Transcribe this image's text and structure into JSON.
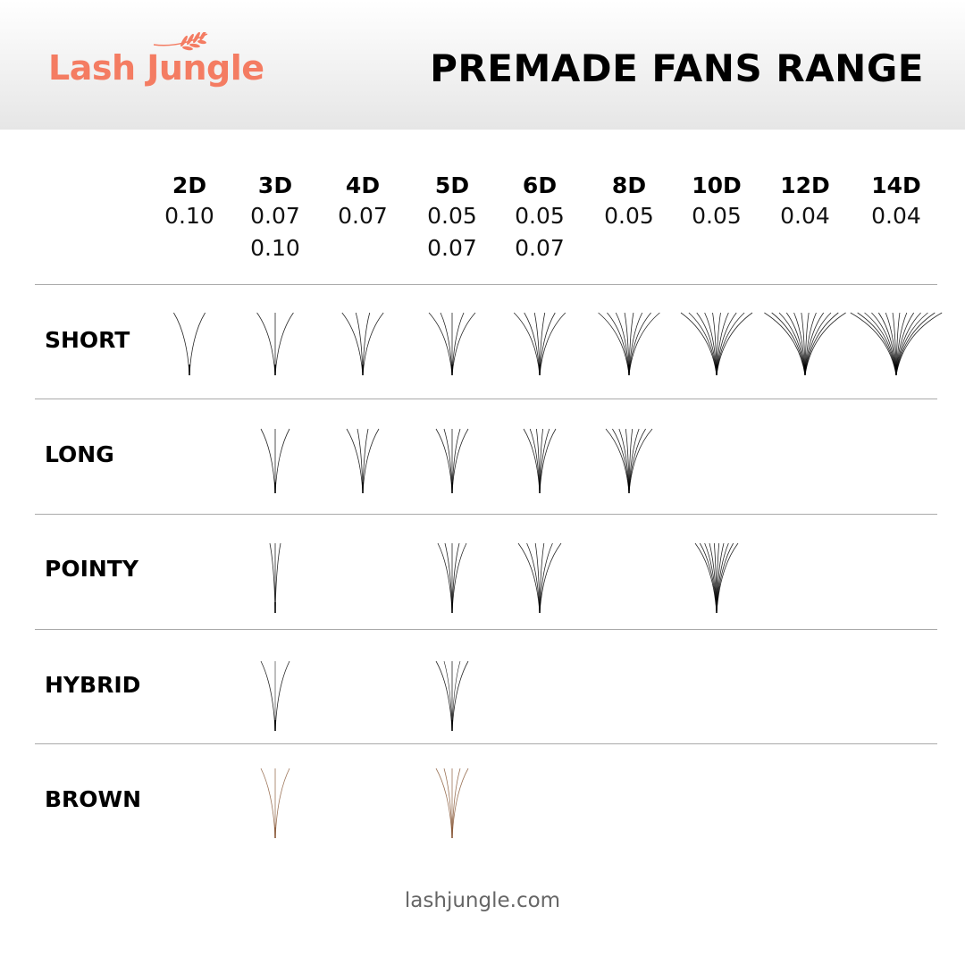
{
  "header": {
    "brand": "Lash Jungle",
    "title": "PREMADE FANS RANGE",
    "brand_color": "#f47c62"
  },
  "columns": [
    {
      "label": "2D",
      "thickness": [
        "0.10"
      ]
    },
    {
      "label": "3D",
      "thickness": [
        "0.07",
        "0.10"
      ]
    },
    {
      "label": "4D",
      "thickness": [
        "0.07"
      ]
    },
    {
      "label": "5D",
      "thickness": [
        "0.05",
        "0.07"
      ]
    },
    {
      "label": "6D",
      "thickness": [
        "0.05",
        "0.07"
      ]
    },
    {
      "label": "8D",
      "thickness": [
        "0.05"
      ]
    },
    {
      "label": "10D",
      "thickness": [
        "0.05"
      ]
    },
    {
      "label": "12D",
      "thickness": [
        "0.04"
      ]
    },
    {
      "label": "14D",
      "thickness": [
        "0.04"
      ]
    }
  ],
  "rows": [
    {
      "label": "SHORT",
      "style": "short",
      "color": "#000000",
      "available": [
        "2D",
        "3D",
        "4D",
        "5D",
        "6D",
        "8D",
        "10D",
        "12D",
        "14D"
      ]
    },
    {
      "label": "LONG",
      "style": "long",
      "color": "#000000",
      "available": [
        "3D",
        "4D",
        "5D",
        "6D",
        "8D"
      ]
    },
    {
      "label": "POINTY",
      "style": "pointy",
      "color": "#000000",
      "available": [
        "3D",
        "5D",
        "6D",
        "10D"
      ]
    },
    {
      "label": "HYBRID",
      "style": "hybrid",
      "color": "#000000",
      "available": [
        "3D",
        "5D"
      ]
    },
    {
      "label": "BROWN",
      "style": "brown",
      "color": "#8a5a3a",
      "available": [
        "3D",
        "5D"
      ]
    }
  ],
  "footer": {
    "website": "lashjungle.com"
  }
}
